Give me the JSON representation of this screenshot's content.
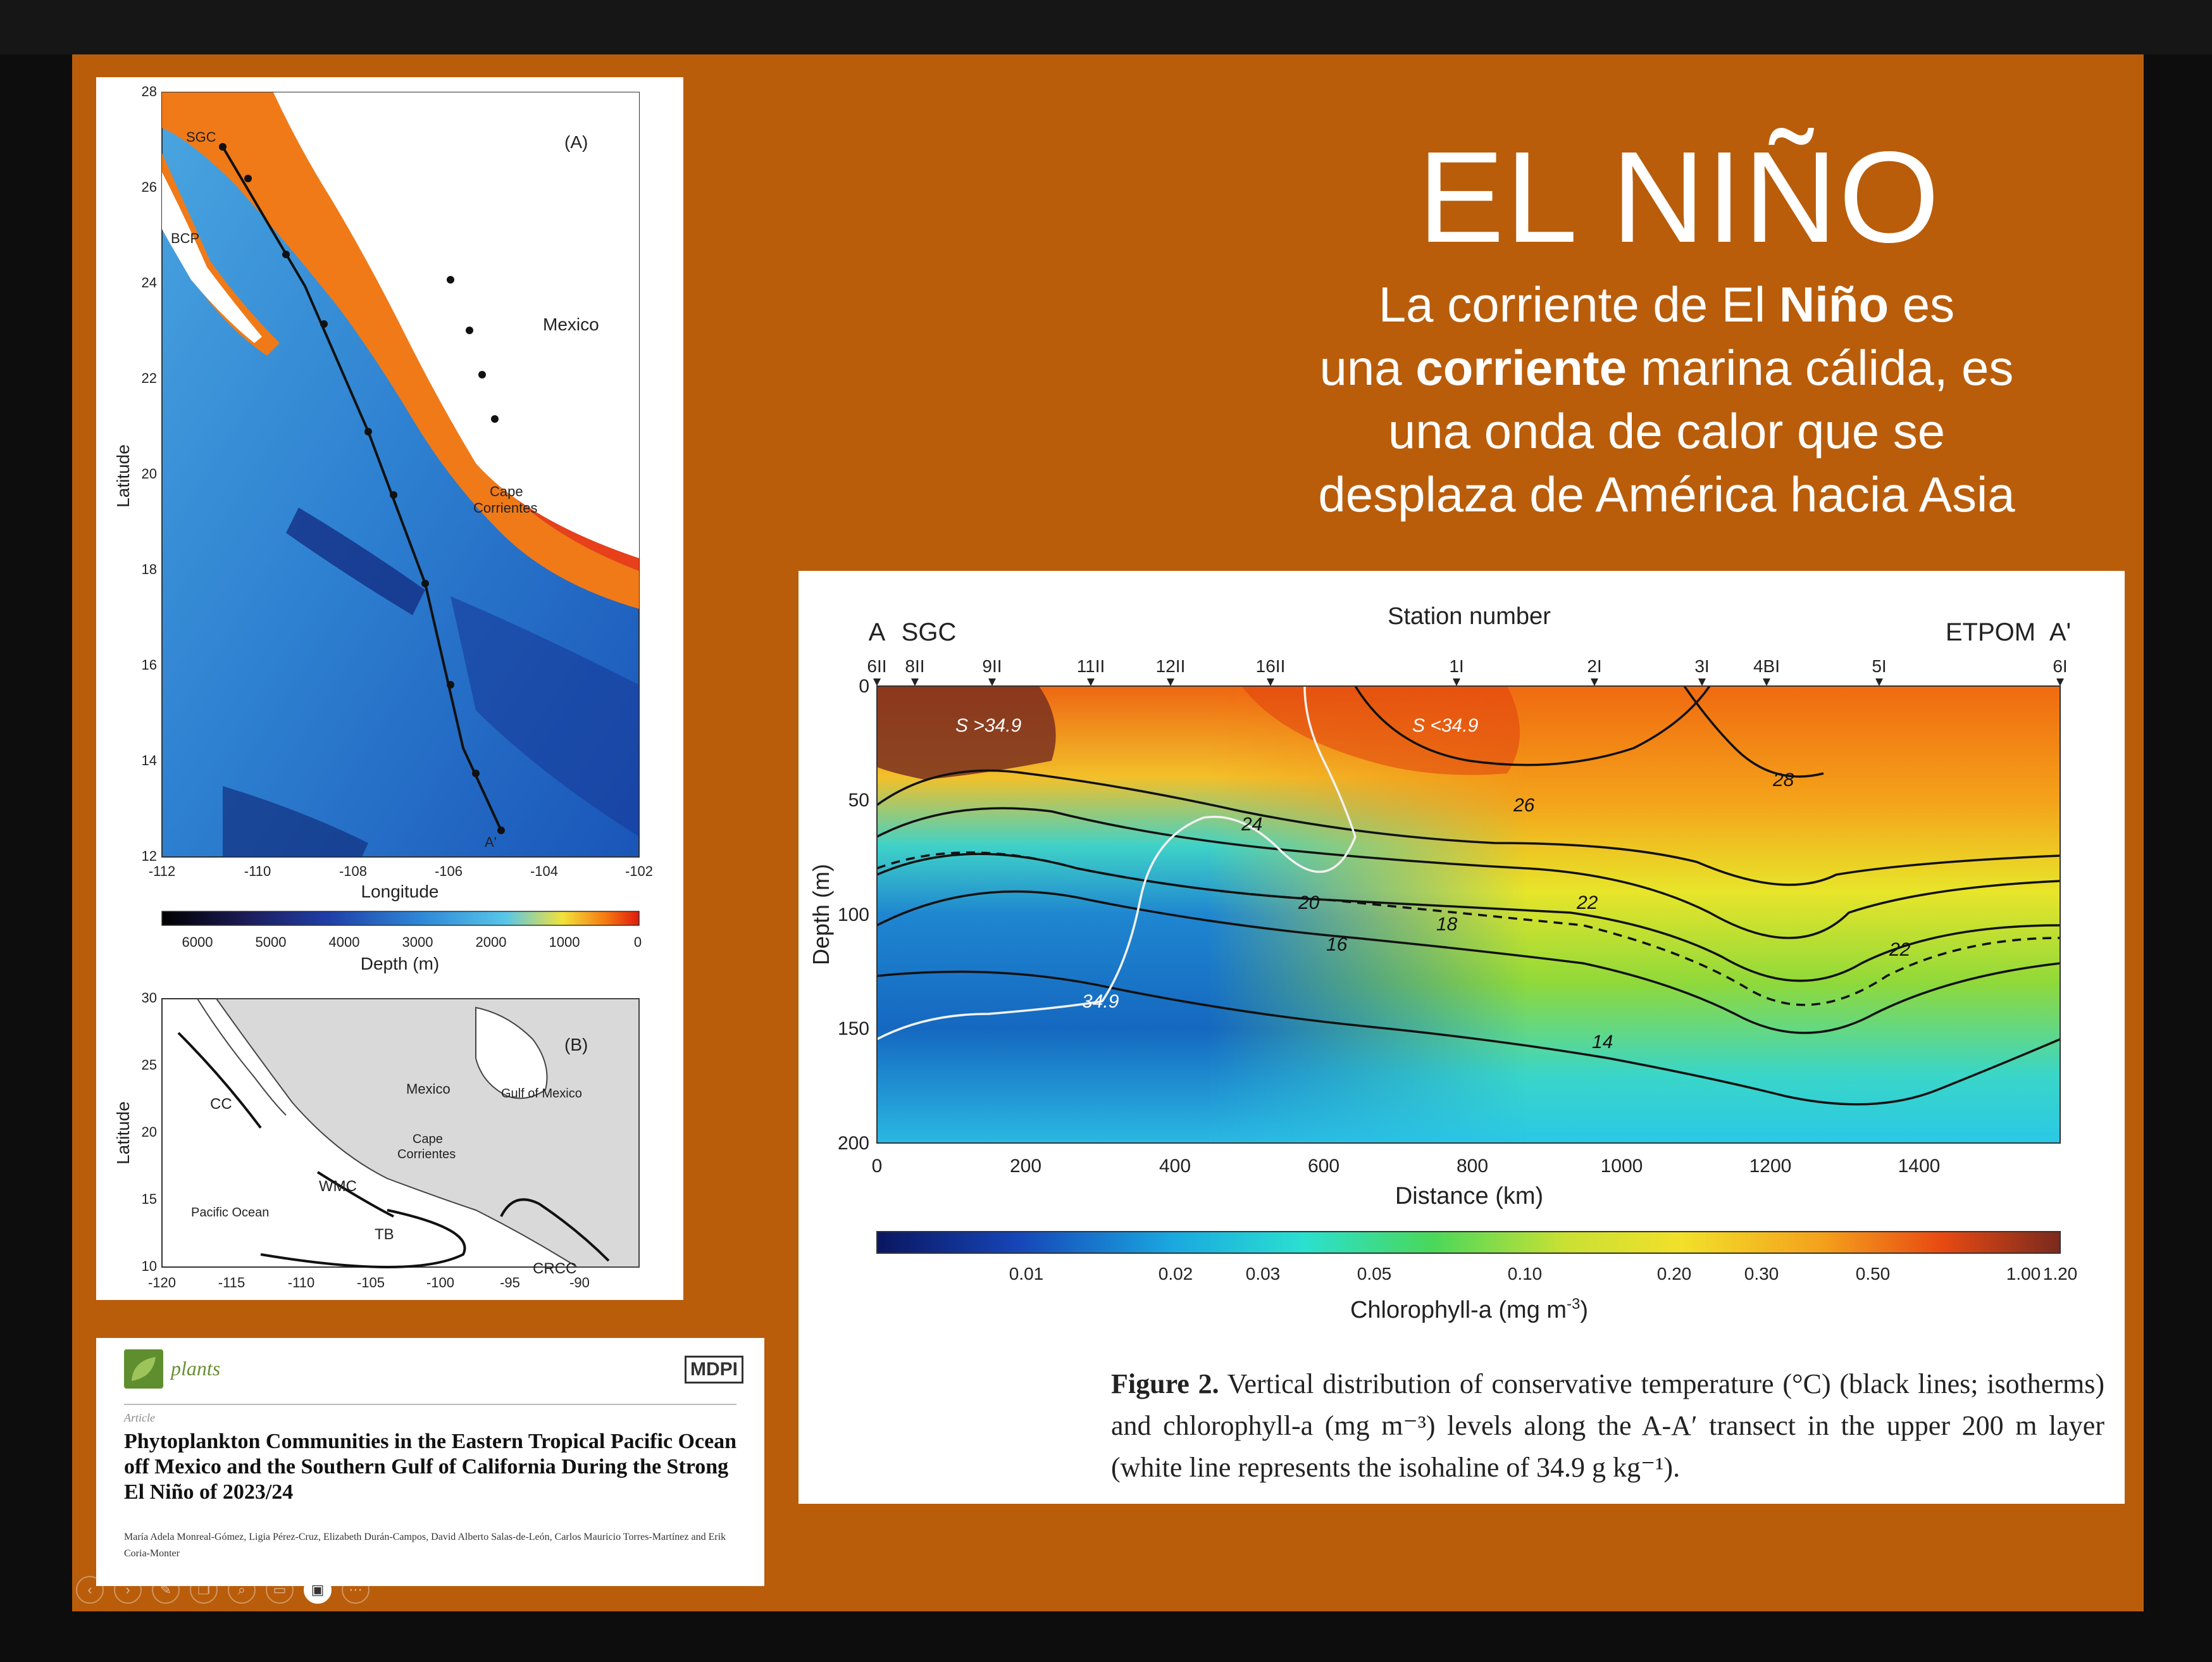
{
  "slide": {
    "title": "EL NIÑO",
    "subtitle_lines": [
      [
        "La corriente de El ",
        "Niño",
        " es"
      ],
      [
        "una ",
        "corriente",
        " marina cálida, es"
      ],
      [
        "una onda de calor que se"
      ],
      [
        "desplaza de América hacia Asia"
      ]
    ]
  },
  "map_a": {
    "panel_label": "(A)",
    "xlabel": "Longitude",
    "ylabel": "Latitude",
    "x_ticks": [
      "-112",
      "-110",
      "-108",
      "-106",
      "-104",
      "-102"
    ],
    "y_ticks": [
      "12",
      "14",
      "16",
      "18",
      "20",
      "22",
      "24",
      "26",
      "28"
    ],
    "place_labels": [
      "SGC",
      "BCP",
      "Mexico",
      "Cape",
      "Corrientes",
      "A'"
    ],
    "depth_label": "Depth (m)",
    "depth_ticks": [
      "6000",
      "5000",
      "4000",
      "3000",
      "2000",
      "1000",
      "0"
    ]
  },
  "map_b": {
    "panel_label": "(B)",
    "ylabel": "Latitude",
    "x_ticks": [
      "-120",
      "-115",
      "-110",
      "-105",
      "-100",
      "-95",
      "-90"
    ],
    "y_ticks": [
      "30",
      "25",
      "20",
      "15",
      "10"
    ],
    "labels": [
      "CC",
      "Mexico",
      "Gulf of Mexico",
      "Cape",
      "Corrientes",
      "WMC",
      "Pacific Ocean",
      "TB",
      "CRCC"
    ]
  },
  "section": {
    "station_label": "Station number",
    "left_labels": [
      "A",
      "SGC"
    ],
    "right_labels": [
      "ETPOM",
      "A'"
    ],
    "stations": [
      "6II",
      "8II",
      "9II",
      "11II",
      "12II",
      "16II",
      "1I",
      "2I",
      "3I",
      "4BI",
      "5I",
      "6I"
    ],
    "xlabel": "Distance (km)",
    "ylabel": "Depth (m)",
    "x_ticks": [
      "0",
      "200",
      "400",
      "600",
      "800",
      "1000",
      "1200",
      "1400"
    ],
    "y_ticks": [
      "0",
      "50",
      "100",
      "150",
      "200"
    ],
    "isotherm_labels": [
      "24",
      "26",
      "28",
      "20",
      "22",
      "18",
      "16",
      "22",
      "14"
    ],
    "salinity_labels": [
      "S >34.9",
      "S <34.9",
      "34.9"
    ],
    "cbar_label": "Chlorophyll-a (mg m",
    "cbar_label_sup": "-3",
    "cbar_label_end": ")",
    "cbar_ticks": [
      "0.01",
      "0.02",
      "0.03",
      "0.05",
      "0.10",
      "0.20",
      "0.30",
      "0.50",
      "1.00",
      "1.20"
    ],
    "caption_bold": "Figure 2.",
    "caption_text": " Vertical distribution of conservative temperature (°C) (black lines; isotherms) and chlorophyll-a (mg m⁻³) levels along the A-A′ transect in the upper 200 m layer (white line represents the isohaline of 34.9 g kg⁻¹)."
  },
  "paper": {
    "journal": "plants",
    "publisher": "MDPI",
    "type": "Article",
    "title": "Phytoplankton Communities in the Eastern Tropical Pacific Ocean off Mexico and the Southern Gulf of California During the Strong El Niño of 2023/24",
    "authors": "María Adela Monreal-Gómez, Ligia Pérez-Cruz, Elizabeth Durán-Campos, David Alberto Salas-de-León, Carlos Mauricio Torres-Martínez and Erik Coria-Monter"
  },
  "toolbar": {
    "buttons": [
      "prev-icon",
      "next-icon",
      "pen-icon",
      "copy-icon",
      "zoom-icon",
      "subtitle-icon",
      "camera-icon",
      "more-icon"
    ],
    "glyphs": [
      "‹",
      "›",
      "✎",
      "❐",
      "⌕",
      "▭",
      "▣",
      "⋯"
    ]
  },
  "colors": {
    "slide_bg": "#b95d0b",
    "deep_blue": "#0b2a8c",
    "warm_red": "#e23a10"
  }
}
